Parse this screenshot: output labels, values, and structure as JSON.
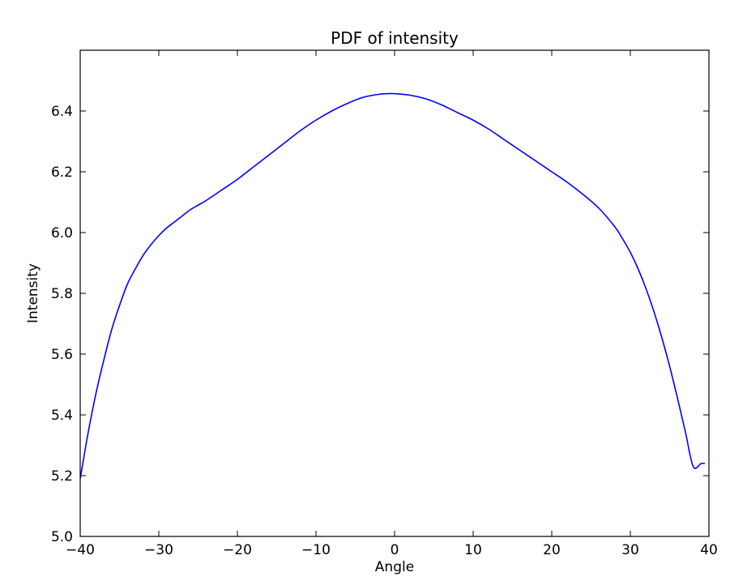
{
  "chart_data": {
    "type": "line",
    "title": "PDF of intensity",
    "xlabel": "Angle",
    "ylabel": "Intensity",
    "xlim": [
      -40,
      40
    ],
    "ylim": [
      5.0,
      6.6
    ],
    "grid": false,
    "x_ticks": [
      -40,
      -30,
      -20,
      -10,
      0,
      10,
      20,
      30,
      40
    ],
    "x_tick_labels": [
      "−40",
      "−30",
      "−20",
      "−10",
      "0",
      "10",
      "20",
      "30",
      "40"
    ],
    "y_ticks": [
      5.0,
      5.2,
      5.4,
      5.6,
      5.8,
      6.0,
      6.2,
      6.4
    ],
    "y_tick_labels": [
      "5.0",
      "5.2",
      "5.4",
      "5.6",
      "5.8",
      "6.0",
      "6.2",
      "6.4"
    ],
    "series": [
      {
        "name": "intensity",
        "color": "#0000ff",
        "x": [
          -40,
          -39,
          -38,
          -37,
          -36,
          -35,
          -34,
          -33,
          -32,
          -31,
          -30,
          -29,
          -28,
          -27,
          -26,
          -25,
          -24,
          -22,
          -20,
          -18,
          -16,
          -14,
          -12,
          -10,
          -8,
          -6,
          -4,
          -2,
          -1,
          0,
          2,
          4,
          6,
          8,
          10,
          12,
          14,
          16,
          18,
          20,
          22,
          24,
          26,
          28,
          29,
          30,
          31,
          32,
          33,
          34,
          35,
          36,
          37,
          38,
          39,
          39.5
        ],
        "y": [
          5.19,
          5.34,
          5.47,
          5.58,
          5.68,
          5.76,
          5.83,
          5.88,
          5.925,
          5.96,
          5.99,
          6.015,
          6.035,
          6.055,
          6.075,
          6.09,
          6.105,
          6.14,
          6.175,
          6.215,
          6.255,
          6.295,
          6.335,
          6.37,
          6.4,
          6.425,
          6.445,
          6.455,
          6.457,
          6.457,
          6.452,
          6.44,
          6.42,
          6.395,
          6.37,
          6.34,
          6.305,
          6.27,
          6.235,
          6.2,
          6.165,
          6.125,
          6.08,
          6.02,
          5.98,
          5.935,
          5.88,
          5.815,
          5.74,
          5.655,
          5.56,
          5.455,
          5.345,
          5.23,
          5.24,
          5.24
        ]
      }
    ]
  }
}
